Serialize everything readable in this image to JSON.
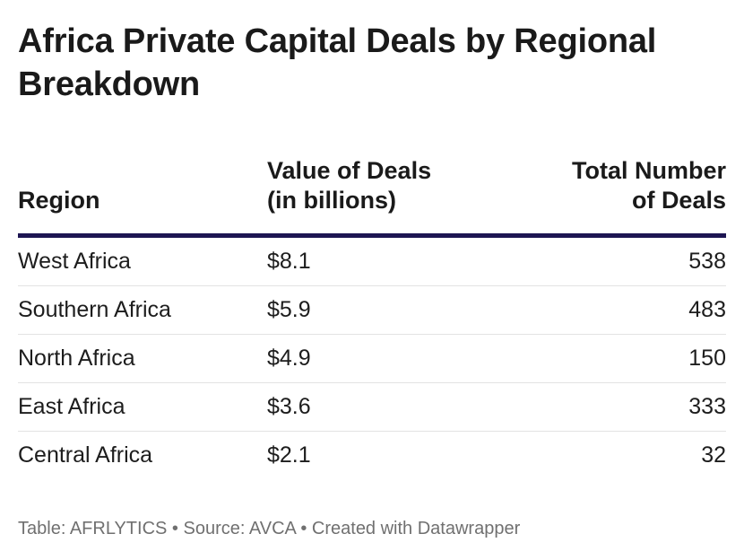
{
  "title": "Africa Private Capital Deals by Regional Breakdown",
  "table": {
    "headers": {
      "region": "Region",
      "value_line1": "Value of Deals",
      "value_line2": "(in billions)",
      "count_line1": "Total Number",
      "count_line2": "of Deals"
    },
    "rows": [
      {
        "region": "West Africa",
        "value": "$8.1",
        "deals": "538"
      },
      {
        "region": "Southern Africa",
        "value": "$5.9",
        "deals": "483"
      },
      {
        "region": "North Africa",
        "value": "$4.9",
        "deals": "150"
      },
      {
        "region": "East Africa",
        "value": "$3.6",
        "deals": "333"
      },
      {
        "region": "Central Africa",
        "value": "$2.1",
        "deals": "32"
      }
    ]
  },
  "footer": {
    "table_credit": "Table: AFRLYTICS",
    "separator": "•",
    "source": "Source: AVCA",
    "created_with": "Created with Datawrapper"
  },
  "colors": {
    "header_rule": "#1d1552",
    "row_divider": "#e3e3e3",
    "footer_text": "#707070"
  },
  "chart_data": {
    "type": "table",
    "title": "Africa Private Capital Deals by Regional Breakdown",
    "columns": [
      "Region",
      "Value of Deals (in billions)",
      "Total Number of Deals"
    ],
    "rows": [
      [
        "West Africa",
        8.1,
        538
      ],
      [
        "Southern Africa",
        5.9,
        483
      ],
      [
        "North Africa",
        4.9,
        150
      ],
      [
        "East Africa",
        3.6,
        333
      ],
      [
        "Central Africa",
        2.1,
        32
      ]
    ]
  }
}
